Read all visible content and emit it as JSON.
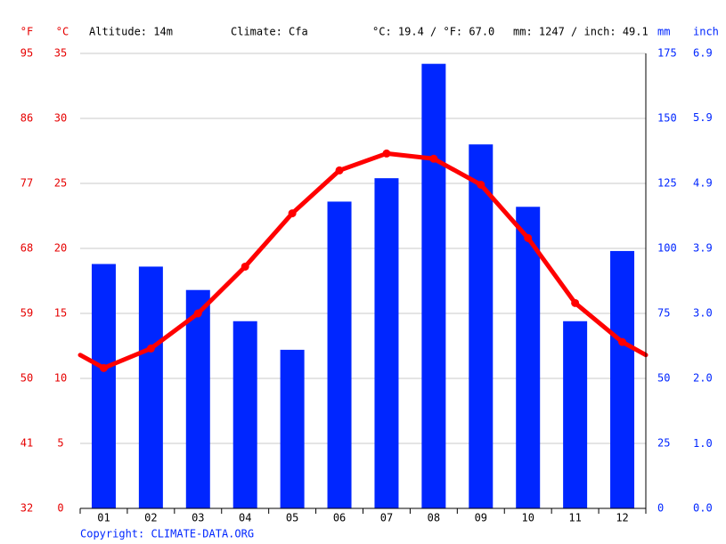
{
  "chart_data": {
    "type": "combo",
    "annotations": [
      "Altitude: 14m",
      "Climate: Cfa",
      "°C: 19.4 / °F: 67.0",
      "mm: 1247 / inch: 49.1"
    ],
    "copyright": "Copyright: CLIMATE-DATA.ORG",
    "categories": [
      "01",
      "02",
      "03",
      "04",
      "05",
      "06",
      "07",
      "08",
      "09",
      "10",
      "11",
      "12"
    ],
    "series": [
      {
        "type": "bar",
        "axis": "y2",
        "color": "#0026ff",
        "values": [
          94,
          93,
          84,
          72,
          61,
          118,
          127,
          171,
          140,
          116,
          72,
          99
        ]
      },
      {
        "type": "line",
        "color": "#ff0000",
        "values": [
          10.8,
          12.3,
          15.0,
          18.6,
          22.7,
          26.0,
          27.3,
          26.9,
          24.9,
          20.8,
          15.8,
          12.8
        ]
      }
    ],
    "ylabel": "°C",
    "ylim": [
      0,
      35
    ],
    "yticks": [
      0,
      5,
      10,
      15,
      20,
      25,
      30,
      35
    ],
    "y_fahrenheit": {
      "label": "°F",
      "lim": [
        32,
        95
      ],
      "ticks": [
        32,
        41,
        50,
        59,
        68,
        77,
        86,
        95
      ]
    },
    "y2label": "mm",
    "y2lim": [
      0,
      175
    ],
    "y2ticks": [
      0,
      25,
      50,
      75,
      100,
      125,
      150,
      175
    ],
    "y2_inch": {
      "label": "inch",
      "lim": [
        0,
        6.89
      ],
      "ticks": [
        {
          "value": 0,
          "label": "0.0"
        },
        {
          "value": 0.98,
          "label": "1.0"
        },
        {
          "value": 1.97,
          "label": "2.0"
        },
        {
          "value": 2.95,
          "label": "3.0"
        },
        {
          "value": 3.94,
          "label": "3.9"
        },
        {
          "value": 4.92,
          "label": "4.9"
        },
        {
          "value": 5.91,
          "label": "5.9"
        },
        {
          "value": 6.89,
          "label": "6.9"
        }
      ]
    },
    "grid": true,
    "left_color": "#e60000",
    "right_color": "#0026ff"
  }
}
